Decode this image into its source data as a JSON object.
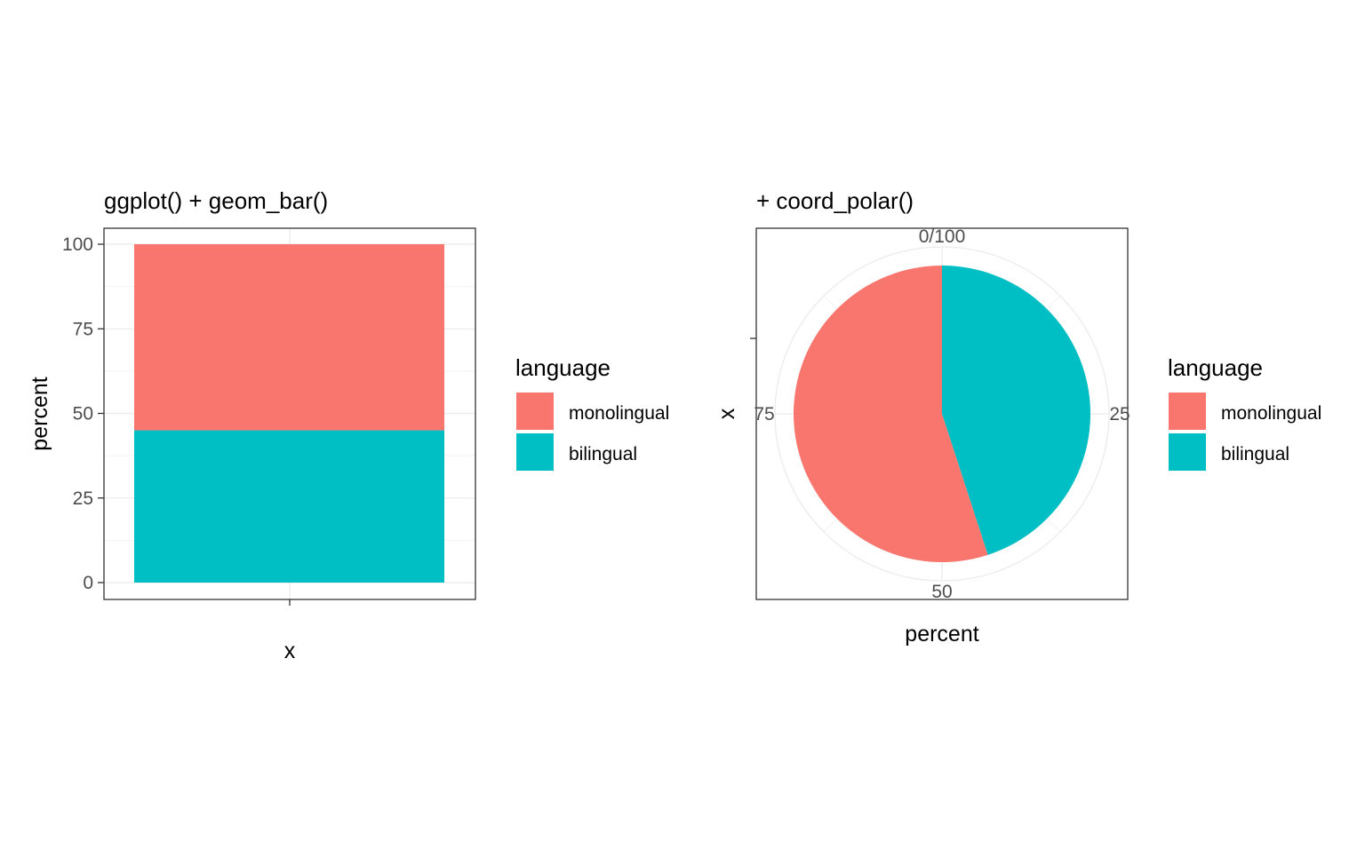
{
  "chart_data": [
    {
      "type": "bar",
      "title": "ggplot() + geom_bar()",
      "xlabel": "x",
      "ylabel": "percent",
      "ylim": [
        0,
        100
      ],
      "yticks": [
        "0",
        "25",
        "50",
        "75",
        "100"
      ],
      "stacked": true,
      "grid": true,
      "legend": {
        "title": "language",
        "position": "right"
      },
      "categories": [
        ""
      ],
      "series": [
        {
          "name": "bilingual",
          "values": [
            45
          ],
          "color": "#00BFC4"
        },
        {
          "name": "monolingual",
          "values": [
            55
          ],
          "color": "#F8766D"
        }
      ]
    },
    {
      "type": "pie",
      "title": "+ coord_polar()",
      "xlabel": "percent",
      "ylabel": "x",
      "angle_ticks": [
        "0/100",
        "25",
        "50",
        "75"
      ],
      "grid": true,
      "legend": {
        "title": "language",
        "position": "right"
      },
      "slices": [
        {
          "name": "bilingual",
          "value": 45,
          "color": "#00BFC4"
        },
        {
          "name": "monolingual",
          "value": 55,
          "color": "#F8766D"
        }
      ]
    }
  ],
  "legend": {
    "title": "language",
    "items": [
      {
        "label": "monolingual",
        "color": "#F8766D"
      },
      {
        "label": "bilingual",
        "color": "#00BFC4"
      }
    ]
  }
}
